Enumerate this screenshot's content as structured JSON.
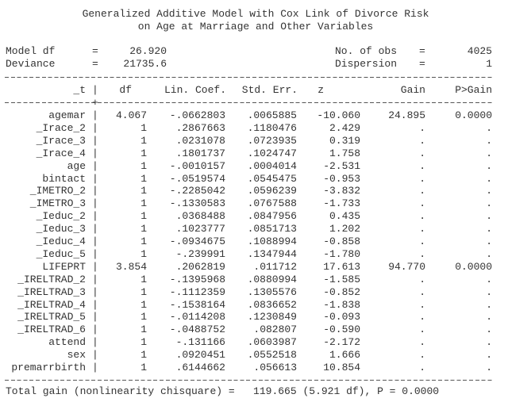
{
  "title": [
    "Generalized Additive Model with Cox Link of Divorce Risk",
    "on Age at Marriage and Other Variables"
  ],
  "stats_left": [
    {
      "label": "Model df",
      "value": "26.920"
    },
    {
      "label": "Deviance",
      "value": "21735.6"
    }
  ],
  "stats_right": [
    {
      "label": "No. of obs",
      "value": "4025"
    },
    {
      "label": "Dispersion",
      "value": "1"
    }
  ],
  "table": {
    "headers": [
      "_t",
      "df",
      "Lin. Coef.",
      "Std. Err.",
      "z",
      "Gain",
      "P>Gain"
    ],
    "rows": [
      [
        "agemar",
        "4.067",
        "-.0662803",
        ".0065885",
        "-10.060",
        "24.895",
        "0.0000"
      ],
      [
        "_Irace_2",
        "1",
        ".2867663",
        ".1180476",
        "2.429",
        ".",
        "."
      ],
      [
        "_Irace_3",
        "1",
        ".0231078",
        ".0723935",
        "0.319",
        ".",
        "."
      ],
      [
        "_Irace_4",
        "1",
        ".1801737",
        ".1024747",
        "1.758",
        ".",
        "."
      ],
      [
        "age",
        "1",
        "-.0010157",
        ".0004014",
        "-2.531",
        ".",
        "."
      ],
      [
        "bintact",
        "1",
        "-.0519574",
        ".0545475",
        "-0.953",
        ".",
        "."
      ],
      [
        "_IMETRO_2",
        "1",
        "-.2285042",
        ".0596239",
        "-3.832",
        ".",
        "."
      ],
      [
        "_IMETRO_3",
        "1",
        "-.1330583",
        ".0767588",
        "-1.733",
        ".",
        "."
      ],
      [
        "_Ieduc_2",
        "1",
        ".0368488",
        ".0847956",
        "0.435",
        ".",
        "."
      ],
      [
        "_Ieduc_3",
        "1",
        ".1023777",
        ".0851713",
        "1.202",
        ".",
        "."
      ],
      [
        "_Ieduc_4",
        "1",
        "-.0934675",
        ".1088994",
        "-0.858",
        ".",
        "."
      ],
      [
        "_Ieduc_5",
        "1",
        "-.239991",
        ".1347944",
        "-1.780",
        ".",
        "."
      ],
      [
        "LIFEPRT",
        "3.854",
        ".2062819",
        ".011712",
        "17.613",
        "94.770",
        "0.0000"
      ],
      [
        "_IRELTRAD_2",
        "1",
        "-.1395968",
        ".0880994",
        "-1.585",
        ".",
        "."
      ],
      [
        "_IRELTRAD_3",
        "1",
        "-.1112359",
        ".1305576",
        "-0.852",
        ".",
        "."
      ],
      [
        "_IRELTRAD_4",
        "1",
        "-.1538164",
        ".0836652",
        "-1.838",
        ".",
        "."
      ],
      [
        "_IRELTRAD_5",
        "1",
        "-.0114208",
        ".1230849",
        "-0.093",
        ".",
        "."
      ],
      [
        "_IRELTRAD_6",
        "1",
        "-.0488752",
        ".082807",
        "-0.590",
        ".",
        "."
      ],
      [
        "attend",
        "1",
        "-.131166",
        ".0603987",
        "-2.172",
        ".",
        "."
      ],
      [
        "sex",
        "1",
        ".0920451",
        ".0552518",
        "1.666",
        ".",
        "."
      ],
      [
        "premarrbirth",
        "1",
        ".6144662",
        ".056613",
        "10.854",
        ".",
        "."
      ]
    ]
  },
  "footer": "Total gain (nonlinearity chisquare) =   119.665 (5.921 df), P = 0.0000"
}
